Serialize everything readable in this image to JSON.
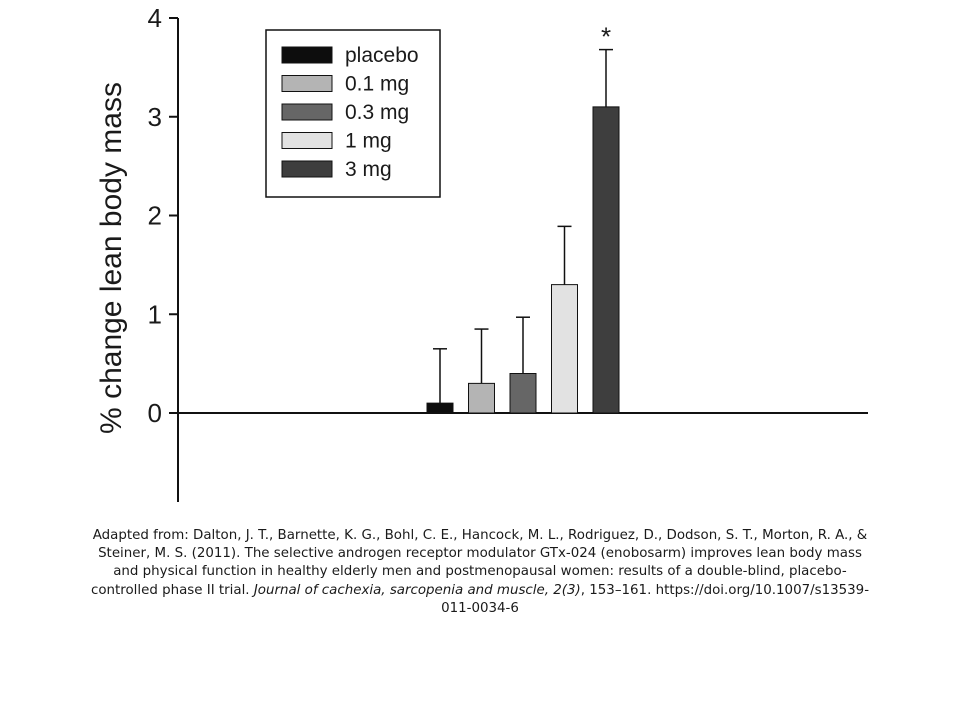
{
  "chart_data": {
    "type": "bar",
    "title": "",
    "xlabel": "",
    "ylabel": "% change lean body mass",
    "ylim": [
      -0.9,
      4
    ],
    "yticks": [
      "0",
      "1",
      "2",
      "3",
      "4"
    ],
    "grid": false,
    "legend_position": "top-left",
    "categories": [
      "placebo",
      "0.1 mg",
      "0.3 mg",
      "1 mg",
      "3 mg"
    ],
    "values": [
      0.1,
      0.3,
      0.4,
      1.3,
      3.1
    ],
    "errors": [
      0.55,
      0.55,
      0.57,
      0.59,
      0.58
    ],
    "colors": [
      "#0d0d0d",
      "#b4b4b4",
      "#666666",
      "#e2e2e2",
      "#3e3e3e"
    ],
    "annotations": [
      {
        "category": "3 mg",
        "text": "*"
      }
    ]
  },
  "citation": {
    "text_before": "Adapted from: Dalton, J. T., Barnette, K. G., Bohl, C. E., Hancock, M. L., Rodriguez, D., Dodson, S. T., Morton, R. A., & Steiner, M. S. (2011). The selective androgen receptor modulator GTx-024 (enobosarm) improves lean body mass and physical function in healthy elderly men and postmenopausal women: results of a double-blind, placebo-controlled phase II trial. ",
    "journal": "Journal of cachexia, sarcopenia and muscle, 2(3)",
    "text_after": ", 153–161. https://doi.org/10.1007/s13539-011-0034-6"
  }
}
